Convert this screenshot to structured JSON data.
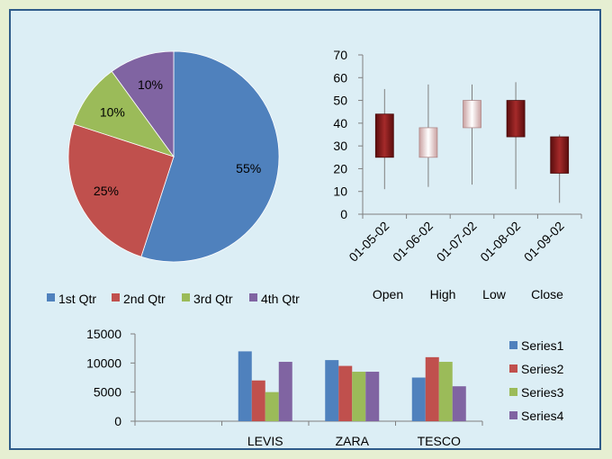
{
  "chart_data": [
    {
      "type": "pie",
      "categories": [
        "1st Qtr",
        "2nd Qtr",
        "3rd Qtr",
        "4th Qtr"
      ],
      "values": [
        55,
        25,
        10,
        10
      ],
      "data_labels": [
        "55%",
        "25%",
        "10%",
        "10%"
      ],
      "colors": [
        "#4f81bd",
        "#c0504d",
        "#9bbb59",
        "#8064a2"
      ],
      "legend_position": "bottom"
    },
    {
      "type": "candlestick",
      "categories": [
        "01-05-02",
        "01-06-02",
        "01-07-02",
        "01-08-02",
        "01-09-02"
      ],
      "series_labels": [
        "Open",
        "High",
        "Low",
        "Close"
      ],
      "open": [
        44,
        25,
        38,
        50,
        34
      ],
      "high": [
        55,
        57,
        57,
        58,
        35
      ],
      "low": [
        11,
        12,
        13,
        11,
        5
      ],
      "close": [
        25,
        38,
        50,
        34,
        18
      ],
      "ylim": [
        0,
        70
      ],
      "yticks": [
        0,
        10,
        20,
        30,
        40,
        50,
        60,
        70
      ]
    },
    {
      "type": "bar",
      "categories": [
        "",
        "LEVIS",
        "ZARA",
        "TESCO"
      ],
      "series": [
        {
          "name": "Series1",
          "values": [
            null,
            12000,
            10500,
            7500
          ],
          "color": "#4f81bd"
        },
        {
          "name": "Series2",
          "values": [
            null,
            7000,
            9500,
            11000
          ],
          "color": "#c0504d"
        },
        {
          "name": "Series3",
          "values": [
            null,
            5000,
            8500,
            10200
          ],
          "color": "#9bbb59"
        },
        {
          "name": "Series4",
          "values": [
            null,
            10200,
            8500,
            6000
          ],
          "color": "#8064a2"
        }
      ],
      "ylim": [
        0,
        15000
      ],
      "yticks": [
        0,
        5000,
        10000,
        15000
      ],
      "legend_position": "right"
    }
  ]
}
